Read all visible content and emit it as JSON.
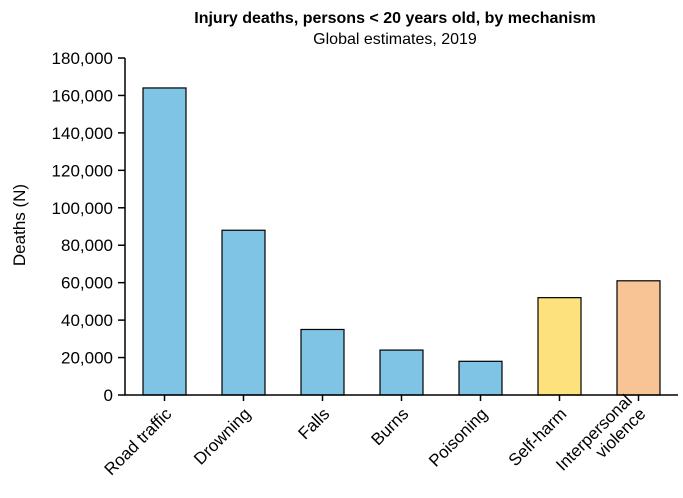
{
  "chart_data": {
    "type": "bar",
    "title": "Injury deaths, persons < 20 years old, by mechanism",
    "subtitle": "Global estimates, 2019",
    "xlabel": "",
    "ylabel": "Deaths (N)",
    "ylim": [
      0,
      180000
    ],
    "yticks": [
      0,
      20000,
      40000,
      60000,
      80000,
      100000,
      120000,
      140000,
      160000,
      180000
    ],
    "ytick_labels": [
      "0",
      "20,000",
      "40,000",
      "60,000",
      "80,000",
      "100,000",
      "120,000",
      "140,000",
      "160,000",
      "180,000"
    ],
    "categories": [
      "Road traffic",
      "Drowning",
      "Falls",
      "Burns",
      "Poisoning",
      "Self-harm",
      "Interpersonal violence"
    ],
    "category_label_lines": [
      [
        "Road traffic"
      ],
      [
        "Drowning"
      ],
      [
        "Falls"
      ],
      [
        "Burns"
      ],
      [
        "Poisoning"
      ],
      [
        "Self-harm"
      ],
      [
        "Interpersonal",
        "violence"
      ]
    ],
    "values": [
      164000,
      88000,
      35000,
      24000,
      18000,
      52000,
      61000
    ],
    "colors": [
      "#7fc4e4",
      "#7fc4e4",
      "#7fc4e4",
      "#7fc4e4",
      "#7fc4e4",
      "#fde17c",
      "#f8c496"
    ],
    "grid": false,
    "legend": "none"
  }
}
